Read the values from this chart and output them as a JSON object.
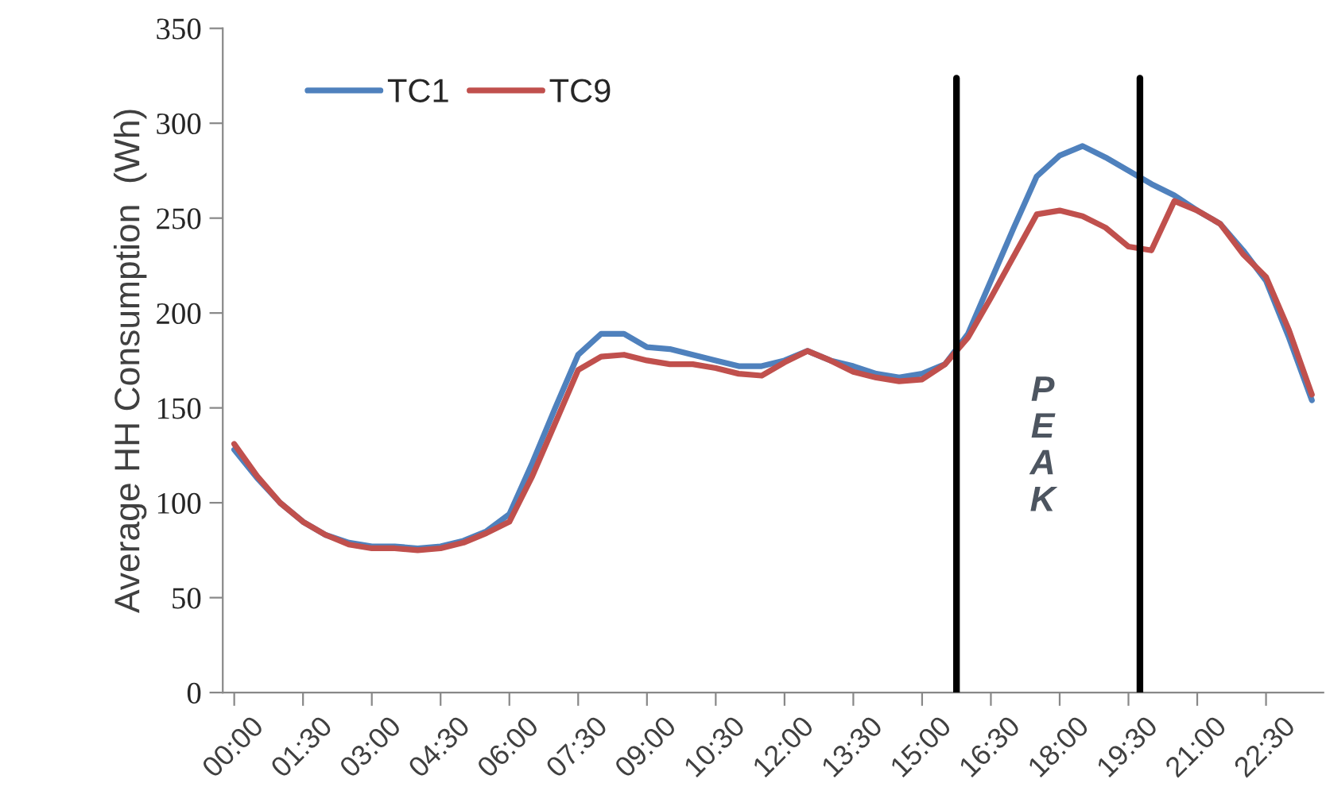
{
  "chart_data": {
    "type": "line",
    "ylabel": "Average HH Consumption  (Wh)",
    "x": [
      0,
      0.5,
      1,
      1.5,
      2,
      2.5,
      3,
      3.5,
      4,
      4.5,
      5,
      5.5,
      6,
      6.5,
      7,
      7.5,
      8,
      8.5,
      9,
      9.5,
      10,
      10.5,
      11,
      11.5,
      12,
      12.5,
      13,
      13.5,
      14,
      14.5,
      15,
      15.5,
      16,
      16.5,
      17,
      17.5,
      18,
      18.5,
      19,
      19.5,
      20,
      20.5,
      21,
      21.5,
      22,
      22.5,
      23,
      23.5
    ],
    "series": [
      {
        "name": "TC1",
        "color": "#4f81bd",
        "values": [
          128,
          113,
          100,
          90,
          83,
          79,
          77,
          77,
          76,
          77,
          80,
          85,
          94,
          121,
          150,
          178,
          189,
          189,
          182,
          181,
          178,
          175,
          172,
          172,
          175,
          180,
          175,
          172,
          168,
          166,
          168,
          173,
          189,
          217,
          245,
          272,
          283,
          288,
          282,
          275,
          268,
          262,
          254,
          247,
          233,
          217,
          187,
          154
        ]
      },
      {
        "name": "TC9",
        "color": "#c0504d",
        "values": [
          131,
          114,
          100,
          90,
          83,
          78,
          76,
          76,
          75,
          76,
          79,
          84,
          90,
          114,
          142,
          170,
          177,
          178,
          175,
          173,
          173,
          171,
          168,
          167,
          174,
          180,
          175,
          169,
          166,
          164,
          165,
          173,
          187,
          208,
          230,
          252,
          254,
          251,
          245,
          235,
          233,
          259,
          254,
          247,
          231,
          219,
          191,
          157
        ]
      }
    ],
    "xlim": [
      -0.25,
      23.75
    ],
    "xticks": [
      {
        "value": 0,
        "label": "00:00"
      },
      {
        "value": 1.5,
        "label": "01:30"
      },
      {
        "value": 3,
        "label": "03:00"
      },
      {
        "value": 4.5,
        "label": "04:30"
      },
      {
        "value": 6,
        "label": "06:00"
      },
      {
        "value": 7.5,
        "label": "07:30"
      },
      {
        "value": 9,
        "label": "09:00"
      },
      {
        "value": 10.5,
        "label": "10:30"
      },
      {
        "value": 12,
        "label": "12:00"
      },
      {
        "value": 13.5,
        "label": "13:30"
      },
      {
        "value": 15,
        "label": "15:00"
      },
      {
        "value": 16.5,
        "label": "16:30"
      },
      {
        "value": 18,
        "label": "18:00"
      },
      {
        "value": 19.5,
        "label": "19:30"
      },
      {
        "value": 21,
        "label": "21:00"
      },
      {
        "value": 22.5,
        "label": "22:30"
      }
    ],
    "ylim": [
      0,
      350
    ],
    "yticks": [
      0,
      50,
      100,
      150,
      200,
      250,
      300,
      350
    ],
    "ref_lines": [
      {
        "axis": "x",
        "value": 15.75,
        "color": "#000000"
      },
      {
        "axis": "x",
        "value": 19.75,
        "color": "#000000"
      }
    ],
    "annotations": [
      "PEAK"
    ],
    "grid": false,
    "legend": "top left",
    "marker": "none",
    "line_style": "solid"
  }
}
